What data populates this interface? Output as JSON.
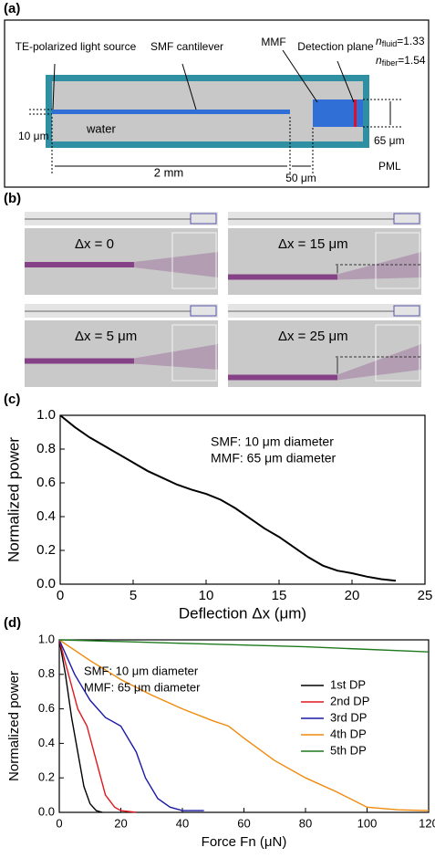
{
  "panel_a": {
    "label": "(a)",
    "source": "TE-polarized light source",
    "smf": "SMF cantilever",
    "mmf": "MMF",
    "detection": "Detection plane",
    "water": "water",
    "core_size": "10 μm",
    "length": "2 mm",
    "gap": "50 μm",
    "mmf_size": "65 μm",
    "pml": "PML",
    "n_fluid": {
      "symbol": "n",
      "subscript": "fluid",
      "value": "=1.33"
    },
    "n_fiber": {
      "symbol": "n",
      "subscript": "fiber",
      "value": "=1.54"
    }
  },
  "panel_b": {
    "label": "(b)",
    "images": [
      "Δx = 0",
      "Δx = 15 μm",
      "Δx = 5 μm",
      "Δx = 25 μm"
    ]
  },
  "chart_data": [
    {
      "type": "line",
      "panel_label": "(c)",
      "x_label": "Deflection Δx (μm)",
      "y_label": "Normalized power",
      "annotations": [
        "SMF: 10 μm diameter",
        "MMF: 65 μm diameter"
      ],
      "color": "#000000",
      "x": [
        0,
        1,
        2,
        3,
        4,
        5,
        6,
        7,
        8,
        9,
        10,
        11,
        12,
        13,
        14,
        15,
        16,
        17,
        18,
        19,
        20,
        21,
        22,
        23
      ],
      "values": [
        1.0,
        0.93,
        0.87,
        0.82,
        0.77,
        0.72,
        0.67,
        0.63,
        0.59,
        0.56,
        0.535,
        0.5,
        0.45,
        0.39,
        0.33,
        0.28,
        0.22,
        0.16,
        0.11,
        0.08,
        0.065,
        0.045,
        0.03,
        0.02
      ],
      "xlim": [
        0,
        25
      ],
      "xticks": [
        0,
        5,
        10,
        15,
        20,
        25
      ],
      "ylim": [
        0,
        1
      ],
      "yticks": [
        {
          "value": 0,
          "label": "0.0"
        },
        0.2,
        0.4,
        0.6,
        0.8,
        {
          "value": 1,
          "label": "1.0"
        }
      ]
    },
    {
      "type": "line",
      "panel_label": "(d)",
      "x_label": "Force Fn (μN)",
      "y_label": "Normalized power",
      "annotations": [
        "SMF: 10 μm diameter",
        "MMF: 65 μm diameter"
      ],
      "legend": "upper right",
      "series": [
        {
          "name": "1st DP",
          "color": "#000000",
          "x": [
            0,
            2,
            4,
            6,
            8,
            10,
            12,
            14
          ],
          "values": [
            1,
            0.8,
            0.55,
            0.35,
            0.15,
            0.05,
            0.01,
            0
          ]
        },
        {
          "name": "2nd DP",
          "color": "#e0191f",
          "x": [
            0,
            3,
            6,
            9,
            12,
            15,
            18,
            20,
            25
          ],
          "values": [
            1,
            0.8,
            0.6,
            0.5,
            0.3,
            0.1,
            0.03,
            0.01,
            0
          ]
        },
        {
          "name": "3rd DP",
          "color": "#1a1aa6",
          "x": [
            0,
            5,
            10,
            15,
            20,
            25,
            28,
            32,
            36,
            40,
            47
          ],
          "values": [
            1,
            0.8,
            0.65,
            0.55,
            0.5,
            0.35,
            0.2,
            0.08,
            0.03,
            0.01,
            0.01
          ]
        },
        {
          "name": "4th DP",
          "color": "#f08a0c",
          "x": [
            0,
            10,
            20,
            30,
            40,
            50,
            55,
            60,
            70,
            80,
            90,
            100,
            110,
            120
          ],
          "values": [
            1,
            0.88,
            0.77,
            0.68,
            0.6,
            0.53,
            0.5,
            0.43,
            0.3,
            0.2,
            0.12,
            0.03,
            0.015,
            0.01
          ]
        },
        {
          "name": "5th DP",
          "color": "#1d7a1d",
          "x": [
            0,
            40,
            80,
            120
          ],
          "values": [
            1,
            0.98,
            0.96,
            0.93
          ]
        }
      ],
      "xlim": [
        0,
        120
      ],
      "xticks": [
        0,
        20,
        40,
        60,
        80,
        100,
        120
      ],
      "ylim": [
        0,
        1
      ],
      "yticks": [
        {
          "value": 0,
          "label": "0.0"
        },
        0.2,
        0.4,
        0.6,
        0.8,
        {
          "value": 1,
          "label": "1.0"
        }
      ]
    }
  ]
}
